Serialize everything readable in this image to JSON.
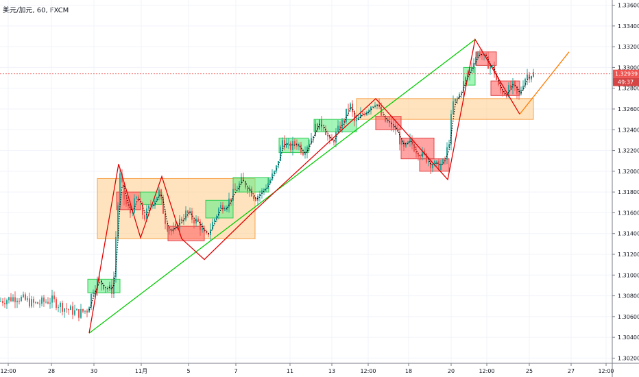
{
  "header": {
    "symbol_label": "美元/加元, 60, FXCM"
  },
  "colors": {
    "up": "#26a69a",
    "down": "#ef5350",
    "zig_red": "#e00000",
    "trend_green": "#00cc00",
    "proj_orange": "#ff7b00",
    "zone_orange": "#ffcc88",
    "zone_green": "#66ee88",
    "zone_red": "#ff6666",
    "price_line": "#ef5350"
  },
  "chart_data": {
    "type": "candlestick",
    "title": "",
    "xlabel": "",
    "ylabel": "",
    "ylim": [
      1.3015,
      1.3365
    ],
    "y_ticks": [
      "1.33600",
      "1.33400",
      "1.33200",
      "1.33000",
      "1.32800",
      "1.32600",
      "1.32400",
      "1.32200",
      "1.32000",
      "1.31800",
      "1.31600",
      "1.31400",
      "1.31200",
      "1.31000",
      "1.30800",
      "1.30600",
      "1.30400",
      "1.30200"
    ],
    "x_tick_labels": [
      "12:00",
      "28",
      "30",
      "11月",
      "5",
      "7",
      "11",
      "13",
      "12:00",
      "18",
      "20",
      "12:00",
      "25",
      "27",
      "12:00"
    ],
    "last_price": "1.32939",
    "countdown": "49:37",
    "price_path": [
      [
        0,
        1.3075
      ],
      [
        25,
        1.3079
      ],
      [
        50,
        1.3072
      ],
      [
        75,
        1.3076
      ],
      [
        95,
        1.3068
      ],
      [
        115,
        1.3063
      ],
      [
        128,
        1.3067
      ],
      [
        135,
        1.3086
      ],
      [
        142,
        1.3094
      ],
      [
        150,
        1.3091
      ],
      [
        158,
        1.3087
      ],
      [
        165,
        1.3085
      ],
      [
        170,
        1.315
      ],
      [
        175,
        1.3195
      ],
      [
        182,
        1.317
      ],
      [
        190,
        1.316
      ],
      [
        200,
        1.3175
      ],
      [
        210,
        1.3155
      ],
      [
        222,
        1.317
      ],
      [
        232,
        1.318
      ],
      [
        242,
        1.315
      ],
      [
        252,
        1.314
      ],
      [
        262,
        1.3152
      ],
      [
        272,
        1.316
      ],
      [
        280,
        1.3155
      ],
      [
        290,
        1.315
      ],
      [
        300,
        1.3135
      ],
      [
        310,
        1.315
      ],
      [
        320,
        1.3165
      ],
      [
        332,
        1.317
      ],
      [
        342,
        1.318
      ],
      [
        352,
        1.319
      ],
      [
        362,
        1.3185
      ],
      [
        372,
        1.3175
      ],
      [
        382,
        1.318
      ],
      [
        392,
        1.319
      ],
      [
        402,
        1.32
      ],
      [
        412,
        1.323
      ],
      [
        422,
        1.3222
      ],
      [
        432,
        1.3228
      ],
      [
        442,
        1.322
      ],
      [
        452,
        1.323
      ],
      [
        462,
        1.3245
      ],
      [
        472,
        1.3245
      ],
      [
        482,
        1.3225
      ],
      [
        492,
        1.3238
      ],
      [
        502,
        1.325
      ],
      [
        510,
        1.3265
      ],
      [
        518,
        1.3245
      ],
      [
        528,
        1.3255
      ],
      [
        538,
        1.3262
      ],
      [
        548,
        1.3268
      ],
      [
        558,
        1.325
      ],
      [
        568,
        1.3245
      ],
      [
        578,
        1.324
      ],
      [
        588,
        1.322
      ],
      [
        598,
        1.3228
      ],
      [
        608,
        1.322
      ],
      [
        618,
        1.3215
      ],
      [
        628,
        1.3208
      ],
      [
        638,
        1.3205
      ],
      [
        648,
        1.3208
      ],
      [
        655,
        1.323
      ],
      [
        660,
        1.3265
      ],
      [
        668,
        1.327
      ],
      [
        676,
        1.3285
      ],
      [
        684,
        1.3295
      ],
      [
        692,
        1.331
      ],
      [
        700,
        1.3315
      ],
      [
        710,
        1.3305
      ],
      [
        720,
        1.3298
      ],
      [
        728,
        1.3278
      ],
      [
        738,
        1.3276
      ],
      [
        748,
        1.3282
      ],
      [
        756,
        1.327
      ],
      [
        762,
        1.3285
      ],
      [
        768,
        1.3293
      ],
      [
        778,
        1.3294
      ]
    ],
    "zigzag": [
      [
        130,
        1.3044
      ],
      [
        173,
        1.3207
      ],
      [
        205,
        1.3136
      ],
      [
        236,
        1.3195
      ],
      [
        265,
        1.3135
      ],
      [
        298,
        1.3115
      ],
      [
        368,
        1.316
      ],
      [
        548,
        1.327
      ],
      [
        653,
        1.3192
      ],
      [
        693,
        1.3327
      ],
      [
        758,
        1.3255
      ],
      [
        830,
        1.3315
      ]
    ],
    "zigzag_projection_from": 10,
    "trendline": [
      [
        130,
        1.3044
      ],
      [
        693,
        1.3327
      ]
    ],
    "zones": [
      {
        "color": "orange",
        "x0": 142,
        "x1": 372,
        "y0": 1.3193,
        "y1": 1.3135
      },
      {
        "color": "orange",
        "x0": 520,
        "x1": 778,
        "y0": 1.327,
        "y1": 1.325
      },
      {
        "color": "green",
        "x0": 128,
        "x1": 175,
        "y0": 1.3096,
        "y1": 1.3083
      },
      {
        "color": "red",
        "x0": 170,
        "x1": 205,
        "y0": 1.318,
        "y1": 1.3163
      },
      {
        "color": "green",
        "x0": 205,
        "x1": 236,
        "y0": 1.318,
        "y1": 1.3168
      },
      {
        "color": "red",
        "x0": 245,
        "x1": 298,
        "y0": 1.3147,
        "y1": 1.3133
      },
      {
        "color": "green",
        "x0": 300,
        "x1": 340,
        "y0": 1.3172,
        "y1": 1.3155
      },
      {
        "color": "green",
        "x0": 340,
        "x1": 392,
        "y0": 1.3194,
        "y1": 1.318
      },
      {
        "color": "green",
        "x0": 407,
        "x1": 450,
        "y0": 1.3232,
        "y1": 1.3218
      },
      {
        "color": "green",
        "x0": 458,
        "x1": 520,
        "y0": 1.325,
        "y1": 1.3238
      },
      {
        "color": "red",
        "x0": 548,
        "x1": 585,
        "y0": 1.3253,
        "y1": 1.324
      },
      {
        "color": "red",
        "x0": 585,
        "x1": 633,
        "y0": 1.3232,
        "y1": 1.3212
      },
      {
        "color": "red",
        "x0": 612,
        "x1": 655,
        "y0": 1.3212,
        "y1": 1.32
      },
      {
        "color": "green",
        "x0": 676,
        "x1": 693,
        "y0": 1.33,
        "y1": 1.3283
      },
      {
        "color": "red",
        "x0": 695,
        "x1": 724,
        "y0": 1.3315,
        "y1": 1.3302
      },
      {
        "color": "red",
        "x0": 716,
        "x1": 758,
        "y0": 1.3287,
        "y1": 1.3273
      }
    ]
  }
}
